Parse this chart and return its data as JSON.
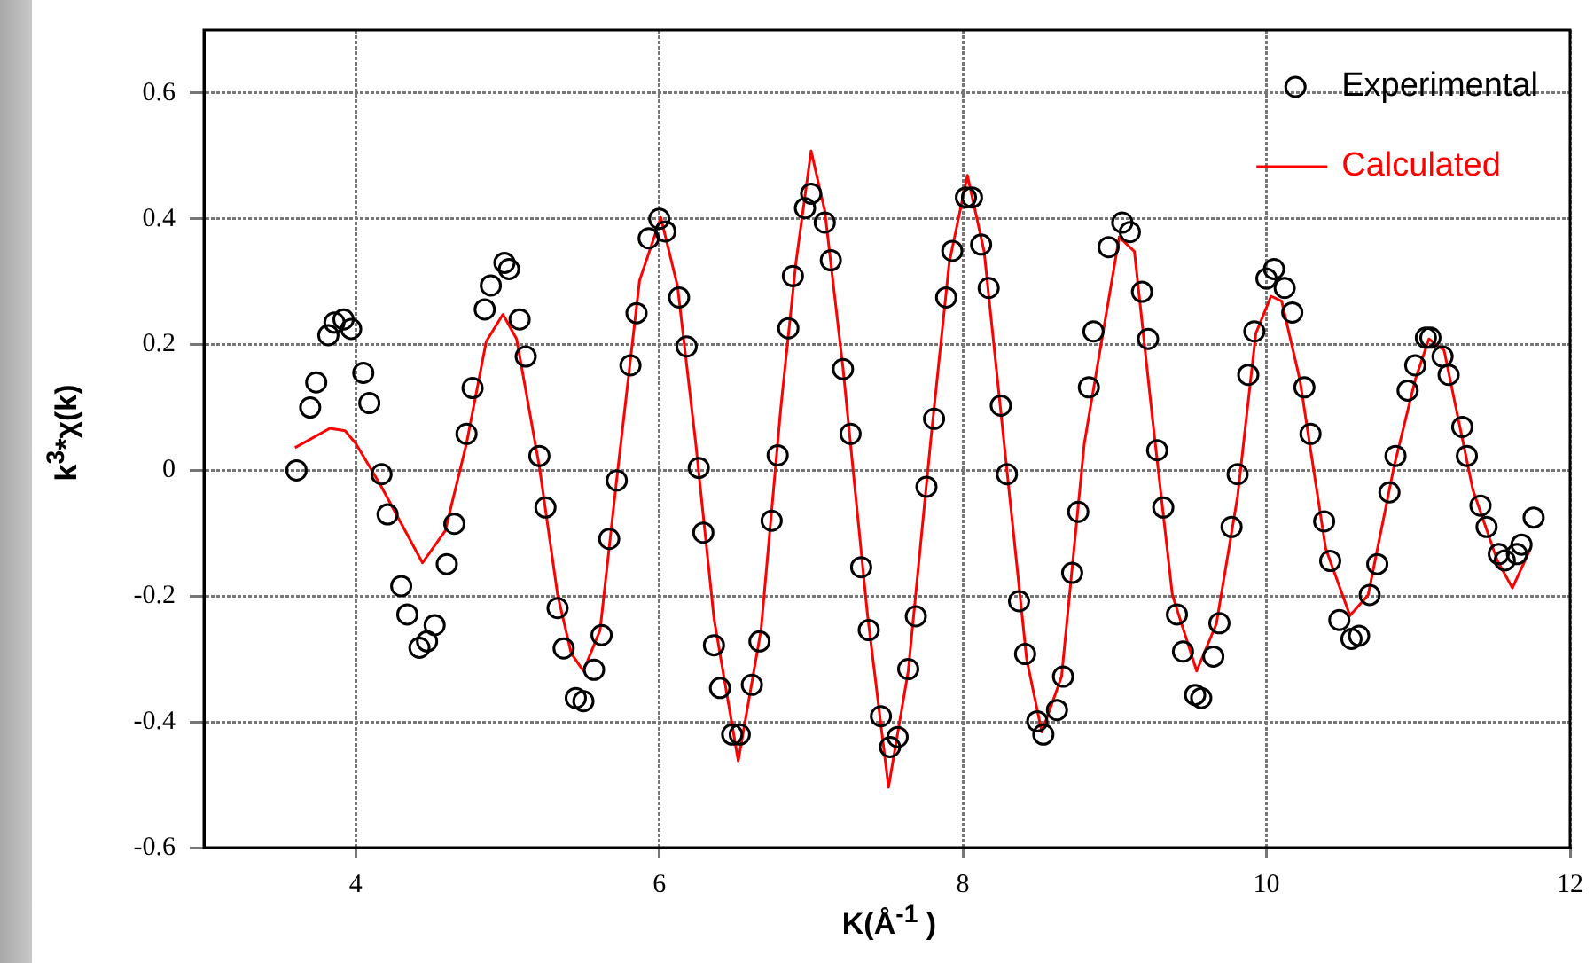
{
  "chart_data": {
    "type": "scatter",
    "xlabel": "K(Å$^{-1}$ )",
    "ylabel": "k$^{3}$*χ(k)",
    "xlim": [
      3,
      12
    ],
    "ylim": [
      -0.6,
      0.7
    ],
    "xticks": [
      4,
      6,
      8,
      10,
      12
    ],
    "yticks": [
      -0.6,
      -0.4,
      -0.2,
      0,
      0.2,
      0.4,
      0.6
    ],
    "grid": true,
    "legend": "top right",
    "series": [
      {
        "name": "Experimental",
        "type": "scatter",
        "marker": "circle",
        "color": "#000000",
        "x": [
          3.61,
          3.7,
          3.74,
          3.82,
          3.86,
          3.92,
          3.97,
          4.05,
          4.09,
          4.17,
          4.21,
          4.3,
          4.34,
          4.42,
          4.47,
          4.52,
          4.6,
          4.65,
          4.73,
          4.77,
          4.85,
          4.89,
          4.98,
          5.01,
          5.08,
          5.12,
          5.21,
          5.25,
          5.33,
          5.37,
          5.45,
          5.5,
          5.57,
          5.62,
          5.67,
          5.72,
          5.81,
          5.85,
          5.93,
          6.0,
          6.04,
          6.13,
          6.18,
          6.26,
          6.29,
          6.36,
          6.4,
          6.48,
          6.53,
          6.61,
          6.66,
          6.74,
          6.78,
          6.85,
          6.88,
          6.96,
          7.0,
          7.09,
          7.13,
          7.21,
          7.26,
          7.33,
          7.38,
          7.46,
          7.52,
          7.57,
          7.64,
          7.69,
          7.76,
          7.81,
          7.89,
          7.93,
          8.02,
          8.06,
          8.12,
          8.17,
          8.25,
          8.29,
          8.37,
          8.41,
          8.49,
          8.53,
          8.62,
          8.66,
          8.72,
          8.76,
          8.83,
          8.86,
          8.96,
          9.05,
          9.1,
          9.18,
          9.22,
          9.28,
          9.32,
          9.41,
          9.45,
          9.53,
          9.57,
          9.65,
          9.69,
          9.77,
          9.81,
          9.88,
          9.92,
          10.0,
          10.05,
          10.12,
          10.17,
          10.25,
          10.29,
          10.38,
          10.42,
          10.48,
          10.56,
          10.61,
          10.68,
          10.73,
          10.81,
          10.85,
          10.93,
          10.98,
          11.05,
          11.08,
          11.16,
          11.2,
          11.29,
          11.32,
          11.41,
          11.45,
          11.53,
          11.57,
          11.65,
          11.68,
          11.76
        ],
        "values": [
          0.0,
          0.1,
          0.14,
          0.215,
          0.235,
          0.24,
          0.225,
          0.155,
          0.107,
          -0.006,
          -0.07,
          -0.184,
          -0.229,
          -0.282,
          -0.272,
          -0.246,
          -0.149,
          -0.085,
          0.058,
          0.131,
          0.256,
          0.294,
          0.33,
          0.32,
          0.24,
          0.181,
          0.023,
          -0.059,
          -0.219,
          -0.283,
          -0.362,
          -0.367,
          -0.317,
          -0.262,
          -0.109,
          -0.016,
          0.167,
          0.25,
          0.369,
          0.4,
          0.38,
          0.275,
          0.197,
          0.004,
          -0.099,
          -0.278,
          -0.346,
          -0.42,
          -0.42,
          -0.341,
          -0.272,
          -0.08,
          0.024,
          0.226,
          0.309,
          0.417,
          0.44,
          0.394,
          0.334,
          0.161,
          0.058,
          -0.154,
          -0.254,
          -0.391,
          -0.44,
          -0.424,
          -0.316,
          -0.232,
          -0.026,
          0.082,
          0.275,
          0.349,
          0.434,
          0.434,
          0.359,
          0.29,
          0.103,
          -0.006,
          -0.208,
          -0.292,
          -0.399,
          -0.42,
          -0.381,
          -0.328,
          -0.163,
          -0.066,
          0.132,
          0.221,
          0.355,
          0.394,
          0.379,
          0.284,
          0.209,
          0.032,
          -0.059,
          -0.229,
          -0.288,
          -0.357,
          -0.362,
          -0.296,
          -0.243,
          -0.09,
          -0.006,
          0.152,
          0.221,
          0.305,
          0.32,
          0.29,
          0.251,
          0.132,
          0.058,
          -0.081,
          -0.144,
          -0.238,
          -0.268,
          -0.263,
          -0.198,
          -0.149,
          -0.035,
          0.023,
          0.127,
          0.167,
          0.211,
          0.211,
          0.181,
          0.152,
          0.069,
          0.023,
          -0.056,
          -0.09,
          -0.133,
          -0.143,
          -0.133,
          -0.118,
          -0.075
        ]
      },
      {
        "name": "Calculated",
        "type": "line",
        "marker": "none",
        "color": "#ff0000",
        "x": [
          3.6,
          3.83,
          3.93,
          4.0,
          4.16,
          4.44,
          4.59,
          4.73,
          4.86,
          4.97,
          5.06,
          5.21,
          5.33,
          5.42,
          5.5,
          5.61,
          5.72,
          5.87,
          6.01,
          6.12,
          6.24,
          6.36,
          6.52,
          6.67,
          6.8,
          6.9,
          7.0,
          7.09,
          7.21,
          7.37,
          7.51,
          7.64,
          7.79,
          7.91,
          8.03,
          8.14,
          8.26,
          8.42,
          8.52,
          8.65,
          8.8,
          9.03,
          9.13,
          9.25,
          9.38,
          9.54,
          9.67,
          9.81,
          9.93,
          10.03,
          10.1,
          10.22,
          10.39,
          10.55,
          10.67,
          10.84,
          10.98,
          11.07,
          11.17,
          11.36,
          11.52,
          11.62,
          11.74
        ],
        "values": [
          0.036,
          0.067,
          0.063,
          0.043,
          -0.022,
          -0.147,
          -0.096,
          0.043,
          0.205,
          0.248,
          0.209,
          0.006,
          -0.198,
          -0.291,
          -0.319,
          -0.254,
          -0.013,
          0.302,
          0.402,
          0.293,
          0.043,
          -0.235,
          -0.462,
          -0.254,
          0.098,
          0.33,
          0.508,
          0.413,
          0.163,
          -0.226,
          -0.504,
          -0.319,
          0.052,
          0.33,
          0.469,
          0.348,
          0.07,
          -0.3,
          -0.416,
          -0.328,
          0.043,
          0.371,
          0.348,
          0.08,
          -0.198,
          -0.319,
          -0.244,
          -0.041,
          0.218,
          0.277,
          0.269,
          0.144,
          -0.124,
          -0.231,
          -0.198,
          0.006,
          0.144,
          0.209,
          0.191,
          -0.031,
          -0.143,
          -0.187,
          -0.124
        ]
      }
    ]
  }
}
